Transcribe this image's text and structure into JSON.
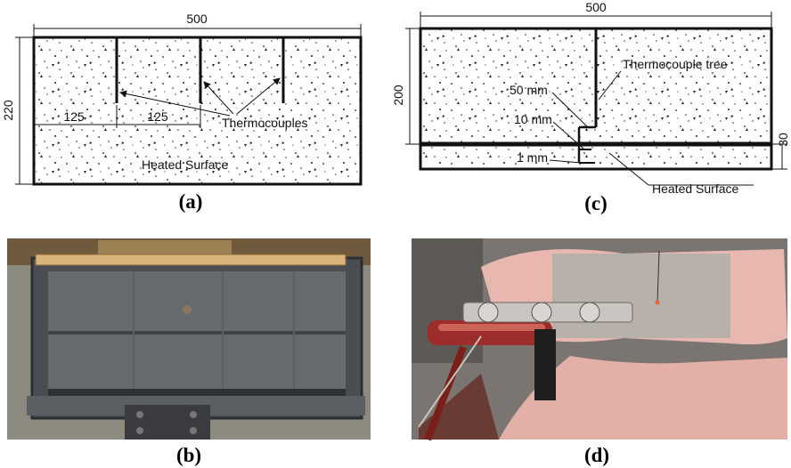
{
  "panel_a": {
    "caption": "(a)",
    "dim_width": "500",
    "dim_height": "220",
    "dim_spacing_1": "125",
    "dim_spacing_2": "125",
    "label_thermocouples": "Thermocouples",
    "label_heated_surface": "Heated Surface"
  },
  "panel_b": {
    "caption": "(b)"
  },
  "panel_c": {
    "caption": "(c)",
    "dim_width": "500",
    "dim_height": "200",
    "dim_layer": "30",
    "label_thermocouple_tree": "Thermocouple tree",
    "label_50mm": "50 mm",
    "label_10mm": "10 mm",
    "label_1mm": "1 mm",
    "label_heated_surface": "Heated Surface"
  },
  "panel_d": {
    "caption": "(d)"
  },
  "colors": {
    "line": "#111111",
    "wood": "#c9a066",
    "steel": "#4a4d52",
    "insulation": "#e8b8b0",
    "background_photo_d": "#7a7570"
  }
}
